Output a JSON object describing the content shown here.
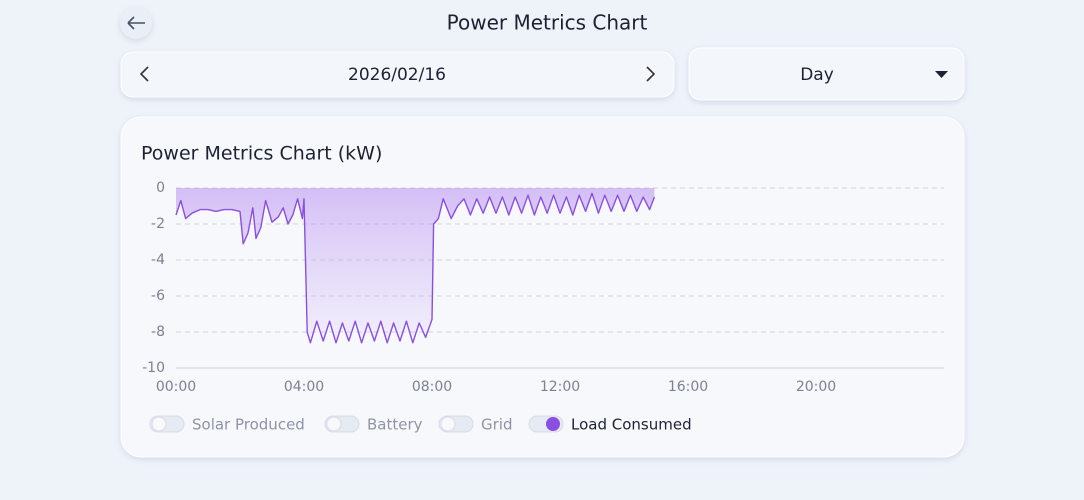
{
  "header": {
    "title": "Power Metrics Chart",
    "date": "2026/02/16",
    "period": "Day"
  },
  "legend": [
    {
      "name": "Solar Produced",
      "enabled": false
    },
    {
      "name": "Battery",
      "enabled": false
    },
    {
      "name": "Grid",
      "enabled": false
    },
    {
      "name": "Load Consumed",
      "enabled": true
    }
  ],
  "chart_data": {
    "type": "area",
    "title": "Power Metrics Chart (kW)",
    "x": [
      0,
      0.15,
      0.3,
      0.5,
      0.75,
      1,
      1.25,
      1.5,
      1.75,
      2.0,
      2.1,
      2.25,
      2.4,
      2.5,
      2.65,
      2.8,
      3.0,
      3.2,
      3.35,
      3.5,
      3.65,
      3.8,
      3.95,
      4.0,
      4.1,
      4.2,
      4.4,
      4.6,
      4.8,
      5.0,
      5.2,
      5.4,
      5.6,
      5.8,
      6.0,
      6.2,
      6.4,
      6.6,
      6.8,
      7.0,
      7.2,
      7.4,
      7.6,
      7.8,
      8.0,
      8.05,
      8.2,
      8.35,
      8.6,
      8.8,
      9.0,
      9.2,
      9.4,
      9.6,
      9.8,
      10.0,
      10.2,
      10.4,
      10.6,
      10.8,
      11.0,
      11.2,
      11.4,
      11.6,
      11.8,
      12.0,
      12.2,
      12.4,
      12.6,
      12.8,
      13.0,
      13.2,
      13.4,
      13.6,
      13.8,
      14.0,
      14.2,
      14.4,
      14.6,
      14.8,
      14.95
    ],
    "series": [
      {
        "name": "Load Consumed",
        "color": "#8a4fe0",
        "values": [
          -1.5,
          -0.7,
          -1.7,
          -1.4,
          -1.2,
          -1.2,
          -1.3,
          -1.2,
          -1.2,
          -1.3,
          -3.1,
          -2.5,
          -1.1,
          -2.8,
          -2.2,
          -0.7,
          -1.9,
          -1.6,
          -1.1,
          -2.0,
          -1.5,
          -0.6,
          -1.7,
          -0.6,
          -8.0,
          -8.6,
          -7.4,
          -8.5,
          -7.4,
          -8.6,
          -7.5,
          -8.5,
          -7.4,
          -8.6,
          -7.5,
          -8.5,
          -7.4,
          -8.6,
          -7.5,
          -8.5,
          -7.4,
          -8.6,
          -7.5,
          -8.3,
          -7.3,
          -2.0,
          -1.7,
          -0.6,
          -1.7,
          -1.0,
          -0.6,
          -1.5,
          -0.6,
          -1.4,
          -0.5,
          -1.4,
          -0.5,
          -1.5,
          -0.5,
          -1.4,
          -0.4,
          -1.5,
          -0.5,
          -1.4,
          -0.4,
          -1.4,
          -0.5,
          -1.5,
          -0.4,
          -1.3,
          -0.3,
          -1.4,
          -0.4,
          -1.3,
          -0.4,
          -1.3,
          -0.4,
          -1.3,
          -0.5,
          -1.2,
          -0.5
        ]
      }
    ],
    "xlim": [
      0,
      24
    ],
    "xticks": [
      {
        "value": 0,
        "label": "00:00"
      },
      {
        "value": 4,
        "label": "04:00"
      },
      {
        "value": 8,
        "label": "08:00"
      },
      {
        "value": 12,
        "label": "12:00"
      },
      {
        "value": 16,
        "label": "16:00"
      },
      {
        "value": 20,
        "label": "20:00"
      }
    ],
    "ylim": [
      -10,
      0
    ],
    "yticks": [
      0,
      -2,
      -4,
      -6,
      -8,
      -10
    ],
    "grid": true
  }
}
